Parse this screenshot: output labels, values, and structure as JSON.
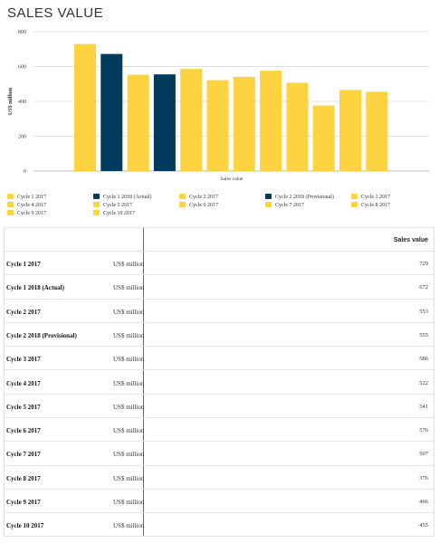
{
  "page_title": "SALES VALUE",
  "chart_data": {
    "type": "bar",
    "xlabel": "Sales value",
    "ylabel": "US$ million",
    "ylim": [
      0,
      800
    ],
    "yticks": [
      0,
      200,
      400,
      600,
      800
    ],
    "grid": true,
    "legend_position": "bottom",
    "categories": [
      "Cycle 1 2017",
      "Cycle 1 2018 (Actual)",
      "Cycle 2 2017",
      "Cycle 2 2018 (Provisional)",
      "Cycle 3 2017",
      "Cycle 4 2017",
      "Cycle 5 2017",
      "Cycle 6 2017",
      "Cycle 7 2017",
      "Cycle 8 2017",
      "Cycle 9 2017",
      "Cycle 10 2017"
    ],
    "values": [
      729,
      672,
      553,
      555,
      586,
      522,
      541,
      576,
      507,
      376,
      466,
      455
    ],
    "colors": [
      "#fdd33f",
      "#003a5c",
      "#fdd33f",
      "#003a5c",
      "#fdd33f",
      "#fdd33f",
      "#fdd33f",
      "#fdd33f",
      "#fdd33f",
      "#fdd33f",
      "#fdd33f",
      "#fdd33f"
    ]
  },
  "table": {
    "column_header": "Sales value",
    "unit": "US$ million",
    "rows": [
      {
        "name": "Cycle 1 2017",
        "value": "729"
      },
      {
        "name": "Cycle 1 2018 (Actual)",
        "value": "672"
      },
      {
        "name": "Cycle 2 2017",
        "value": "553"
      },
      {
        "name": "Cycle 2 2018 (Provisional)",
        "value": "555"
      },
      {
        "name": "Cycle 3 2017",
        "value": "586"
      },
      {
        "name": "Cycle 4 2017",
        "value": "522"
      },
      {
        "name": "Cycle 5 2017",
        "value": "541"
      },
      {
        "name": "Cycle 6 2017",
        "value": "576"
      },
      {
        "name": "Cycle 7 2017",
        "value": "507"
      },
      {
        "name": "Cycle 8 2017",
        "value": "376"
      },
      {
        "name": "Cycle 9 2017",
        "value": "466"
      },
      {
        "name": "Cycle 10 2017",
        "value": "455"
      }
    ]
  }
}
